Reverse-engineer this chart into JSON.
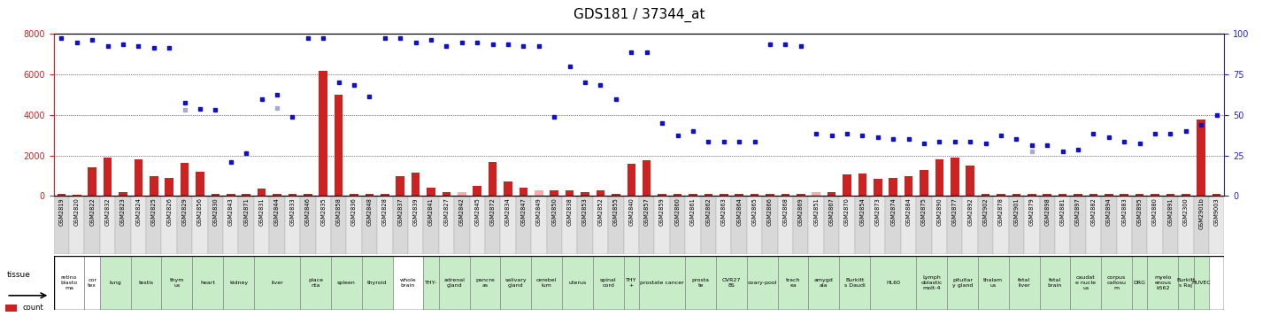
{
  "title": "GDS181 / 37344_at",
  "samples": [
    "GSM2819",
    "GSM2820",
    "GSM2822",
    "GSM2832",
    "GSM2823",
    "GSM2824",
    "GSM2825",
    "GSM2826",
    "GSM2829",
    "GSM2856",
    "GSM2830",
    "GSM2843",
    "GSM2871",
    "GSM2831",
    "GSM2844",
    "GSM2833",
    "GSM2846",
    "GSM2835",
    "GSM2858",
    "GSM2836",
    "GSM2848",
    "GSM2828",
    "GSM2837",
    "GSM2839",
    "GSM2841",
    "GSM2827",
    "GSM2842",
    "GSM2845",
    "GSM2872",
    "GSM2834",
    "GSM2847",
    "GSM2849",
    "GSM2850",
    "GSM2838",
    "GSM2853",
    "GSM2852",
    "GSM2855",
    "GSM2840",
    "GSM2857",
    "GSM2859",
    "GSM2860",
    "GSM2861",
    "GSM2862",
    "GSM2863",
    "GSM2864",
    "GSM2865",
    "GSM2866",
    "GSM2868",
    "GSM2869",
    "GSM2851",
    "GSM2867",
    "GSM2870",
    "GSM2854",
    "GSM2873",
    "GSM2874",
    "GSM2884",
    "GSM2875",
    "GSM2890",
    "GSM2877",
    "GSM2892",
    "GSM2902",
    "GSM2878",
    "GSM2901",
    "GSM2879",
    "GSM2898",
    "GSM2881",
    "GSM2897",
    "GSM2882",
    "GSM2894",
    "GSM2883",
    "GSM2895",
    "GSM2880",
    "GSM2891",
    "GSM2300",
    "GSM2901b",
    "GSM9003"
  ],
  "counts": [
    100,
    80,
    1400,
    1900,
    200,
    1800,
    1000,
    900,
    1650,
    1200,
    100,
    100,
    100,
    350,
    100,
    100,
    100,
    6200,
    5000,
    100,
    100,
    100,
    1000,
    1150,
    400,
    200,
    200,
    500,
    1700,
    700,
    400,
    300,
    300,
    300,
    200,
    300,
    100,
    1600,
    1750,
    100,
    100,
    100,
    100,
    100,
    100,
    100,
    100,
    100,
    100,
    200,
    200,
    1050,
    1100,
    850,
    900,
    1000,
    1300,
    1800,
    1900,
    1500,
    100,
    100,
    100,
    100,
    100,
    100,
    100,
    100,
    100,
    100,
    100,
    100,
    100,
    100,
    3800,
    100
  ],
  "ranks": [
    7800,
    7600,
    7700,
    7400,
    7500,
    7400,
    7300,
    7300,
    4600,
    4300,
    4250,
    1700,
    2100,
    4800,
    5000,
    3900,
    7800,
    7800,
    5600,
    5500,
    4900,
    7800,
    7800,
    7600,
    7700,
    7400,
    7600,
    7600,
    7500,
    7500,
    7400,
    7400,
    3900,
    6400,
    5600,
    5500,
    4800,
    7100,
    7100,
    3600,
    3000,
    3200,
    2700,
    2700,
    2700,
    2700,
    7500,
    7500,
    7400,
    3100,
    3000,
    3100,
    3000,
    2900,
    2800,
    2800,
    2600,
    2700,
    2700,
    2700,
    2600,
    3000,
    2800,
    2500,
    2500,
    2200,
    2300,
    3100,
    2900,
    2700,
    2600,
    3100,
    3100,
    3200,
    3500,
    4000
  ],
  "absent_counts": [
    null,
    null,
    null,
    null,
    null,
    null,
    null,
    null,
    null,
    null,
    null,
    null,
    null,
    null,
    null,
    null,
    null,
    null,
    null,
    null,
    null,
    null,
    null,
    null,
    null,
    null,
    200,
    null,
    null,
    null,
    null,
    300,
    null,
    null,
    null,
    null,
    null,
    null,
    null,
    null,
    null,
    null,
    null,
    null,
    null,
    null,
    null,
    null,
    null,
    200,
    null,
    null,
    null,
    null,
    null,
    null,
    null,
    null,
    null,
    null,
    null,
    null,
    null,
    null,
    null,
    null,
    null,
    null,
    null,
    null,
    null,
    null,
    null,
    null,
    null,
    null
  ],
  "absent_ranks": [
    null,
    null,
    null,
    null,
    null,
    null,
    null,
    null,
    4250,
    null,
    null,
    null,
    null,
    null,
    4350,
    null,
    null,
    null,
    null,
    null,
    null,
    null,
    null,
    null,
    null,
    null,
    null,
    null,
    null,
    null,
    null,
    null,
    null,
    null,
    null,
    null,
    null,
    null,
    null,
    null,
    null,
    null,
    null,
    null,
    null,
    null,
    null,
    null,
    null,
    null,
    null,
    null,
    null,
    null,
    null,
    null,
    null,
    null,
    null,
    null,
    null,
    null,
    null,
    2200,
    null,
    null,
    null,
    null,
    null,
    null,
    null,
    null,
    null,
    null,
    null,
    null
  ],
  "tissue_groups": [
    {
      "indices": [
        0,
        1
      ],
      "label": "retino\nblasto\nma",
      "color": "#ffffff"
    },
    {
      "indices": [
        2
      ],
      "label": "cor\ntex",
      "color": "#ffffff"
    },
    {
      "indices": [
        3,
        4
      ],
      "label": "lung",
      "color": "#c8ecc8"
    },
    {
      "indices": [
        5,
        6
      ],
      "label": "testis",
      "color": "#c8ecc8"
    },
    {
      "indices": [
        7,
        8
      ],
      "label": "thym\nus",
      "color": "#c8ecc8"
    },
    {
      "indices": [
        9,
        10
      ],
      "label": "heart",
      "color": "#c8ecc8"
    },
    {
      "indices": [
        11,
        12
      ],
      "label": "kidney",
      "color": "#c8ecc8"
    },
    {
      "indices": [
        13,
        14,
        15
      ],
      "label": "liver",
      "color": "#c8ecc8"
    },
    {
      "indices": [
        16,
        17
      ],
      "label": "place\nnta",
      "color": "#c8ecc8"
    },
    {
      "indices": [
        18,
        19
      ],
      "label": "spleen",
      "color": "#c8ecc8"
    },
    {
      "indices": [
        20,
        21
      ],
      "label": "thyroid",
      "color": "#c8ecc8"
    },
    {
      "indices": [
        22,
        23
      ],
      "label": "whole\nbrain",
      "color": "#ffffff"
    },
    {
      "indices": [
        24
      ],
      "label": "THY-",
      "color": "#c8ecc8"
    },
    {
      "indices": [
        25,
        26
      ],
      "label": "adrenal\ngland",
      "color": "#c8ecc8"
    },
    {
      "indices": [
        27,
        28
      ],
      "label": "pancre\nas",
      "color": "#c8ecc8"
    },
    {
      "indices": [
        29,
        30
      ],
      "label": "salivary\ngland",
      "color": "#c8ecc8"
    },
    {
      "indices": [
        31,
        32
      ],
      "label": "cerebel\nlum",
      "color": "#c8ecc8"
    },
    {
      "indices": [
        33,
        34
      ],
      "label": "uterus",
      "color": "#c8ecc8"
    },
    {
      "indices": [
        35,
        36
      ],
      "label": "spinal\ncord",
      "color": "#c8ecc8"
    },
    {
      "indices": [
        37
      ],
      "label": "THY\n+",
      "color": "#c8ecc8"
    },
    {
      "indices": [
        38,
        39,
        40
      ],
      "label": "prostate cancer",
      "color": "#c8ecc8"
    },
    {
      "indices": [
        41,
        42
      ],
      "label": "prosta\nte",
      "color": "#c8ecc8"
    },
    {
      "indices": [
        43,
        44
      ],
      "label": "OVR27\n8S",
      "color": "#c8ecc8"
    },
    {
      "indices": [
        45,
        46
      ],
      "label": "ovary-pool",
      "color": "#c8ecc8"
    },
    {
      "indices": [
        47,
        48
      ],
      "label": "trach\nea",
      "color": "#c8ecc8"
    },
    {
      "indices": [
        49,
        50
      ],
      "label": "amygd\nala",
      "color": "#c8ecc8"
    },
    {
      "indices": [
        51,
        52
      ],
      "label": "Burkitt\ns Daudi",
      "color": "#c8ecc8"
    },
    {
      "indices": [
        53,
        54,
        55
      ],
      "label": "HL60",
      "color": "#c8ecc8"
    },
    {
      "indices": [
        56,
        57
      ],
      "label": "Lymph\noblastic\nmolt-4",
      "color": "#c8ecc8"
    },
    {
      "indices": [
        58,
        59
      ],
      "label": "pituitar\ny gland",
      "color": "#c8ecc8"
    },
    {
      "indices": [
        60,
        61
      ],
      "label": "thalam\nus",
      "color": "#c8ecc8"
    },
    {
      "indices": [
        62,
        63
      ],
      "label": "fetal\nliver",
      "color": "#c8ecc8"
    },
    {
      "indices": [
        64,
        65
      ],
      "label": "fetal\nbrain",
      "color": "#c8ecc8"
    },
    {
      "indices": [
        66,
        67
      ],
      "label": "caudat\ne nucle\nus",
      "color": "#c8ecc8"
    },
    {
      "indices": [
        68,
        69
      ],
      "label": "corpus\ncallosu\nm",
      "color": "#c8ecc8"
    },
    {
      "indices": [
        70
      ],
      "label": "DRG",
      "color": "#c8ecc8"
    },
    {
      "indices": [
        71,
        72
      ],
      "label": "myelo\nenous\nk562",
      "color": "#c8ecc8"
    },
    {
      "indices": [
        73
      ],
      "label": "Burkitt\ns Raj",
      "color": "#c8ecc8"
    },
    {
      "indices": [
        74
      ],
      "label": "HUVEC",
      "color": "#c8ecc8"
    }
  ],
  "ylim": [
    0,
    8000
  ],
  "yticks_left": [
    0,
    2000,
    4000,
    6000,
    8000
  ],
  "yticks_right": [
    0,
    25,
    50,
    75,
    100
  ],
  "bar_color": "#cc2222",
  "dot_color": "#1111cc",
  "absent_bar_color": "#ffaaaa",
  "absent_dot_color": "#aaaacc",
  "left_axis_color": "#cc2222",
  "right_axis_color": "#2222cc",
  "title_fontsize": 11,
  "tick_fontsize": 7,
  "sample_fontsize": 4.8,
  "tissue_fontsize": 4.5,
  "legend_fontsize": 6,
  "dot_size": 3.5,
  "bar_width": 0.55
}
